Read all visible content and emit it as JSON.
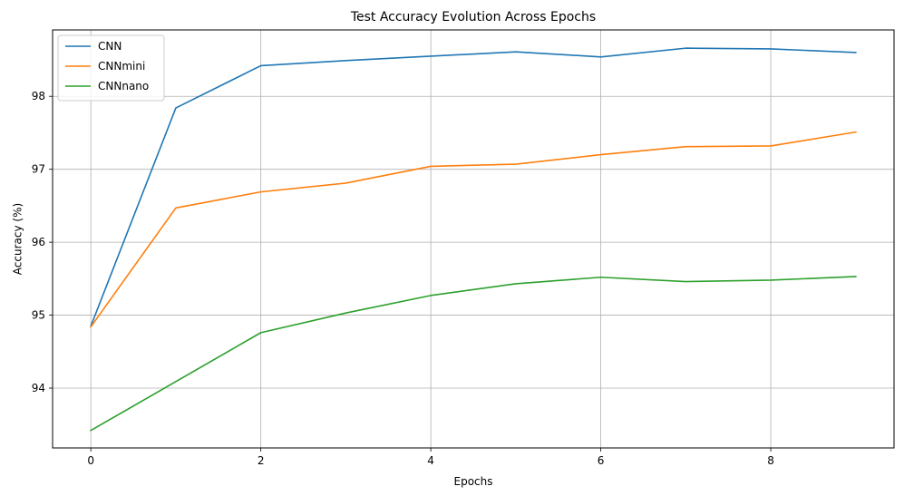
{
  "chart_data": {
    "type": "line",
    "title": "Test Accuracy Evolution Across Epochs",
    "xlabel": "Epochs",
    "ylabel": "Accuracy (%)",
    "x": [
      0,
      1,
      2,
      3,
      4,
      5,
      6,
      7,
      8,
      9
    ],
    "xlim": [
      -0.45,
      9.45
    ],
    "ylim": [
      93.18,
      98.91
    ],
    "xticks": [
      0,
      2,
      4,
      6,
      8
    ],
    "yticks": [
      94,
      95,
      96,
      97,
      98
    ],
    "xtick_labels": [
      "0",
      "2",
      "4",
      "6",
      "8"
    ],
    "ytick_labels": [
      "94",
      "95",
      "96",
      "97",
      "98"
    ],
    "grid": true,
    "legend_position": "top-left",
    "series": [
      {
        "name": "CNN",
        "color": "#1f77b4",
        "values": [
          94.85,
          97.84,
          98.42,
          98.49,
          98.55,
          98.61,
          98.54,
          98.66,
          98.65,
          98.6
        ]
      },
      {
        "name": "CNNmini",
        "color": "#ff7f0e",
        "values": [
          94.84,
          96.47,
          96.69,
          96.81,
          97.04,
          97.07,
          97.2,
          97.31,
          97.32,
          97.51
        ]
      },
      {
        "name": "CNNnano",
        "color": "#2ca02c",
        "values": [
          93.42,
          94.09,
          94.76,
          95.03,
          95.27,
          95.43,
          95.52,
          95.46,
          95.48,
          95.53
        ]
      }
    ]
  }
}
